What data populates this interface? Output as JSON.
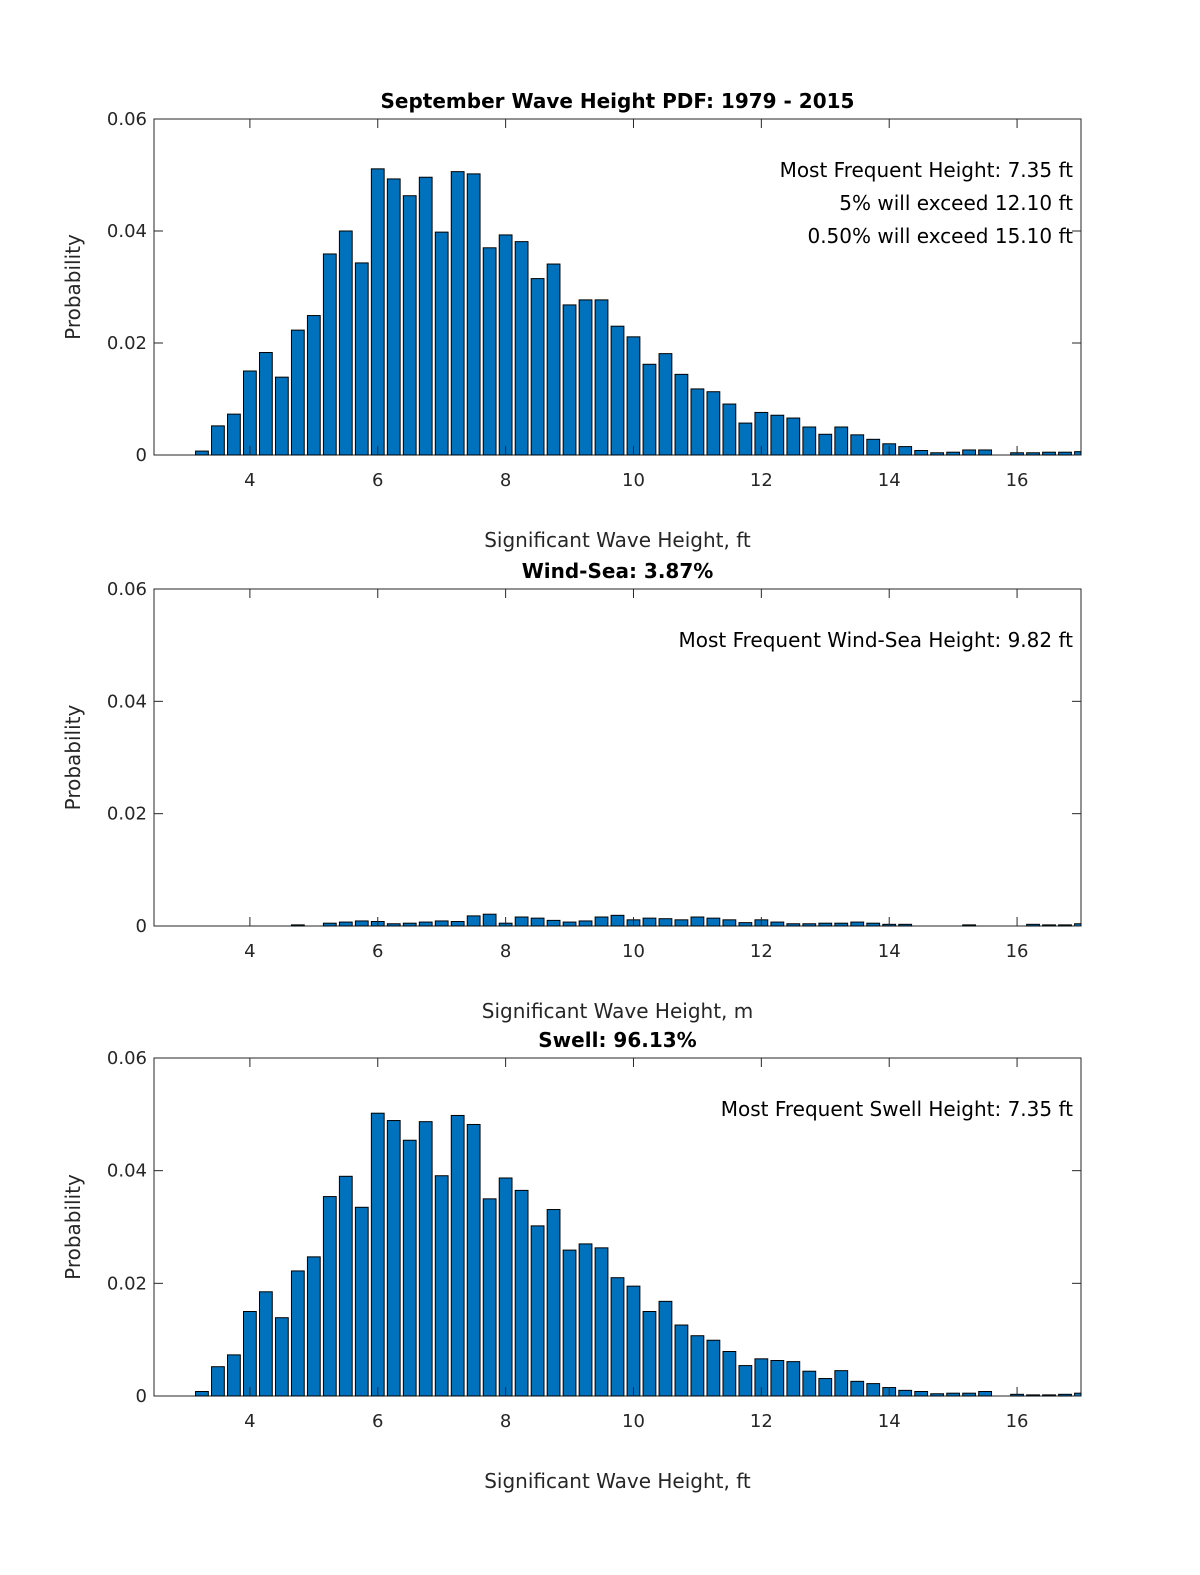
{
  "chart_data": [
    {
      "type": "bar",
      "title": "September Wave Height PDF: 1979 - 2015",
      "xlabel": "Significant Wave Height, ft",
      "ylabel": "Probability",
      "xlim": [
        2.5,
        17
      ],
      "ylim": [
        0,
        0.06
      ],
      "xticks": [
        4,
        6,
        8,
        10,
        12,
        14,
        16
      ],
      "yticks": [
        0,
        0.02,
        0.04,
        0.06
      ],
      "ytick_labels": [
        "0",
        "0.02",
        "0.04",
        "0.06"
      ],
      "annotations": [
        "Most Frequent Height: 7.35 ft",
        "5% will exceed 12.10 ft",
        "0.50% will exceed 15.10 ft"
      ],
      "x": [
        3.25,
        3.5,
        3.75,
        4,
        4.25,
        4.5,
        4.75,
        5,
        5.25,
        5.5,
        5.75,
        6,
        6.25,
        6.5,
        6.75,
        7,
        7.25,
        7.5,
        7.75,
        8,
        8.25,
        8.5,
        8.75,
        9,
        9.25,
        9.5,
        9.75,
        10,
        10.25,
        10.5,
        10.75,
        11,
        11.25,
        11.5,
        11.75,
        12,
        12.25,
        12.5,
        12.75,
        13,
        13.25,
        13.5,
        13.75,
        14,
        14.25,
        14.5,
        14.75,
        15,
        15.25,
        15.5,
        15.75,
        16,
        16.25,
        16.5,
        16.75,
        17
      ],
      "values": [
        0.0007,
        0.0052,
        0.0073,
        0.015,
        0.0183,
        0.0139,
        0.0223,
        0.0249,
        0.0359,
        0.04,
        0.0343,
        0.0511,
        0.0493,
        0.0463,
        0.0496,
        0.0398,
        0.0506,
        0.0502,
        0.037,
        0.0393,
        0.0381,
        0.0315,
        0.0341,
        0.0268,
        0.0277,
        0.0277,
        0.023,
        0.0211,
        0.0162,
        0.0181,
        0.0144,
        0.0118,
        0.0113,
        0.0091,
        0.0057,
        0.0076,
        0.0071,
        0.0066,
        0.005,
        0.0037,
        0.005,
        0.0036,
        0.0028,
        0.002,
        0.0015,
        0.0008,
        0.0004,
        0.0005,
        0.0009,
        0.0009,
        0,
        0.0004,
        0.0004,
        0.0005,
        0.0005,
        0.0006
      ]
    },
    {
      "type": "bar",
      "title": "Wind-Sea: 3.87%",
      "xlabel": "Significant Wave Height, m",
      "ylabel": "Probability",
      "xlim": [
        2.5,
        17
      ],
      "ylim": [
        0,
        0.06
      ],
      "xticks": [
        4,
        6,
        8,
        10,
        12,
        14,
        16
      ],
      "yticks": [
        0,
        0.02,
        0.04,
        0.06
      ],
      "ytick_labels": [
        "0",
        "0.02",
        "0.04",
        "0.06"
      ],
      "annotations": [
        "Most Frequent Wind-Sea Height: 9.82 ft"
      ],
      "x": [
        3.25,
        3.5,
        3.75,
        4,
        4.25,
        4.5,
        4.75,
        5,
        5.25,
        5.5,
        5.75,
        6,
        6.25,
        6.5,
        6.75,
        7,
        7.25,
        7.5,
        7.75,
        8,
        8.25,
        8.5,
        8.75,
        9,
        9.25,
        9.5,
        9.75,
        10,
        10.25,
        10.5,
        10.75,
        11,
        11.25,
        11.5,
        11.75,
        12,
        12.25,
        12.5,
        12.75,
        13,
        13.25,
        13.5,
        13.75,
        14,
        14.25,
        14.5,
        14.75,
        15,
        15.25,
        15.5,
        15.75,
        16,
        16.25,
        16.5,
        16.75,
        17
      ],
      "values": [
        0,
        0,
        0,
        0,
        0,
        0,
        0.0002,
        0,
        0.0005,
        0.0007,
        0.0009,
        0.0008,
        0.0004,
        0.0005,
        0.0007,
        0.0009,
        0.0008,
        0.0018,
        0.0021,
        0.0005,
        0.0016,
        0.0014,
        0.001,
        0.0007,
        0.0009,
        0.0016,
        0.0019,
        0.0011,
        0.0014,
        0.0013,
        0.0011,
        0.0016,
        0.0014,
        0.0011,
        0.0006,
        0.0011,
        0.0007,
        0.0004,
        0.0004,
        0.0005,
        0.0005,
        0.0007,
        0.0005,
        0.0003,
        0.0003,
        0,
        0,
        0,
        0.0002,
        0,
        0,
        0,
        0.0003,
        0.0002,
        0.0002,
        0.0004
      ]
    },
    {
      "type": "bar",
      "title": "Swell: 96.13%",
      "xlabel": "Significant Wave Height, ft",
      "ylabel": "Probability",
      "xlim": [
        2.5,
        17
      ],
      "ylim": [
        0,
        0.06
      ],
      "xticks": [
        4,
        6,
        8,
        10,
        12,
        14,
        16
      ],
      "yticks": [
        0,
        0.02,
        0.04,
        0.06
      ],
      "ytick_labels": [
        "0",
        "0.02",
        "0.04",
        "0.06"
      ],
      "annotations": [
        "Most Frequent Swell Height: 7.35 ft"
      ],
      "x": [
        3.25,
        3.5,
        3.75,
        4,
        4.25,
        4.5,
        4.75,
        5,
        5.25,
        5.5,
        5.75,
        6,
        6.25,
        6.5,
        6.75,
        7,
        7.25,
        7.5,
        7.75,
        8,
        8.25,
        8.5,
        8.75,
        9,
        9.25,
        9.5,
        9.75,
        10,
        10.25,
        10.5,
        10.75,
        11,
        11.25,
        11.5,
        11.75,
        12,
        12.25,
        12.5,
        12.75,
        13,
        13.25,
        13.5,
        13.75,
        14,
        14.25,
        14.5,
        14.75,
        15,
        15.25,
        15.5,
        15.75,
        16,
        16.25,
        16.5,
        16.75,
        17
      ],
      "values": [
        0.0008,
        0.0052,
        0.0073,
        0.015,
        0.0185,
        0.0139,
        0.0222,
        0.0247,
        0.0354,
        0.039,
        0.0335,
        0.0502,
        0.0489,
        0.0454,
        0.0487,
        0.0391,
        0.0498,
        0.0482,
        0.035,
        0.0387,
        0.0365,
        0.0302,
        0.0331,
        0.0259,
        0.027,
        0.0263,
        0.021,
        0.0195,
        0.015,
        0.0168,
        0.0126,
        0.0107,
        0.0099,
        0.0079,
        0.0054,
        0.0066,
        0.0063,
        0.0061,
        0.0044,
        0.0031,
        0.0045,
        0.0026,
        0.0022,
        0.0015,
        0.001,
        0.0008,
        0.0004,
        0.0005,
        0.0005,
        0.0008,
        0,
        0.0003,
        0.0002,
        0.0002,
        0.0003,
        0.0005
      ]
    }
  ]
}
